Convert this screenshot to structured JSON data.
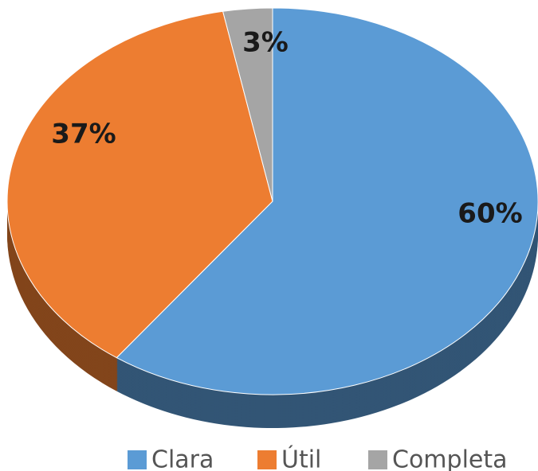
{
  "chart_data": {
    "type": "pie",
    "categories": [
      "Clara",
      "Útil",
      "Completa"
    ],
    "values": [
      60,
      37,
      3
    ],
    "value_labels": [
      "60%",
      "37%",
      "3%"
    ],
    "colors": [
      "#5b9bd5",
      "#ed7d31",
      "#a5a5a5"
    ],
    "legend": "bottom"
  }
}
